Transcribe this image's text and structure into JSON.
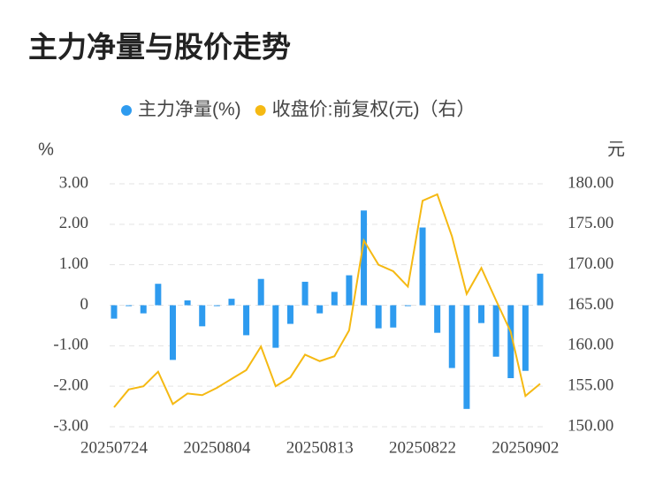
{
  "chart_data": {
    "type": "bar_line",
    "title": "主力净量与股价走势",
    "y_label": "%",
    "y2_label": "元",
    "categories": [
      "20250724",
      null,
      null,
      null,
      null,
      null,
      null,
      "20250804",
      null,
      null,
      null,
      null,
      null,
      null,
      "20250813",
      null,
      null,
      null,
      null,
      null,
      null,
      "20250822",
      null,
      null,
      null,
      null,
      null,
      null,
      "20250902",
      null
    ],
    "series": [
      {
        "name": "主力净量(%)",
        "color": "#2e9bef",
        "type": "bar",
        "axis": "y",
        "values": [
          -0.33,
          -0.02,
          -0.2,
          0.53,
          -1.35,
          0.12,
          -0.52,
          -0.02,
          0.16,
          -0.74,
          0.65,
          -1.05,
          -0.46,
          0.58,
          -0.2,
          0.33,
          0.74,
          2.34,
          -0.57,
          -0.55,
          -0.02,
          1.92,
          -0.68,
          -1.55,
          -2.56,
          -0.44,
          -1.27,
          -1.8,
          -1.62,
          0.78
        ]
      },
      {
        "name": "收盘价:前复权(元)（右）",
        "color": "#f5b913",
        "type": "line",
        "axis": "y2",
        "values": [
          152.4,
          154.6,
          155.0,
          156.8,
          152.8,
          154.1,
          153.9,
          154.8,
          155.9,
          157.0,
          159.9,
          155.0,
          156.1,
          158.9,
          158.1,
          158.7,
          161.9,
          173.0,
          170.0,
          169.2,
          167.3,
          177.9,
          178.7,
          173.5,
          166.4,
          169.6,
          165.6,
          161.7,
          153.8,
          155.3
        ]
      }
    ],
    "ylim": [
      -3,
      3
    ],
    "yticks": [
      {
        "value": 3,
        "label": "3.00"
      },
      {
        "value": 2,
        "label": "2.00"
      },
      {
        "value": 1,
        "label": "1.00"
      },
      0,
      {
        "value": -1,
        "label": "-1.00"
      },
      {
        "value": -2,
        "label": "-2.00"
      },
      {
        "value": -3,
        "label": "-3.00"
      }
    ],
    "y2lim": [
      150,
      180
    ],
    "y2ticks": [
      {
        "value": 180,
        "label": "180.00"
      },
      {
        "value": 175,
        "label": "175.00"
      },
      {
        "value": 170,
        "label": "170.00"
      },
      {
        "value": 165,
        "label": "165.00"
      },
      {
        "value": 160,
        "label": "160.00"
      },
      {
        "value": 155,
        "label": "155.00"
      },
      {
        "value": 150,
        "label": "150.00"
      }
    ],
    "grid": true,
    "legend": "top"
  }
}
